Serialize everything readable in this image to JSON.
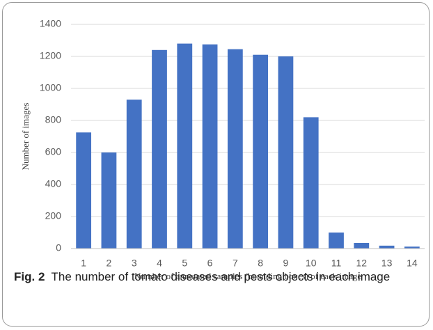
{
  "chart_data": {
    "type": "bar",
    "ylabel": "Number of images",
    "xlabel": "Number of annotated samples (bounding boxes) of each image",
    "categories": [
      "1",
      "2",
      "3",
      "4",
      "5",
      "6",
      "7",
      "8",
      "9",
      "10",
      "11",
      "12",
      "13",
      "14"
    ],
    "values": [
      725,
      600,
      930,
      1240,
      1280,
      1275,
      1245,
      1210,
      1200,
      820,
      100,
      35,
      18,
      12
    ],
    "color": "#4472c4",
    "ylim": [
      0,
      1400
    ],
    "yticks": [
      0,
      200,
      400,
      600,
      800,
      1000,
      1200,
      1400
    ],
    "grid": true,
    "caption_label": "Fig. 2",
    "caption": "The number of tomato diseases and pests objects in each image"
  }
}
